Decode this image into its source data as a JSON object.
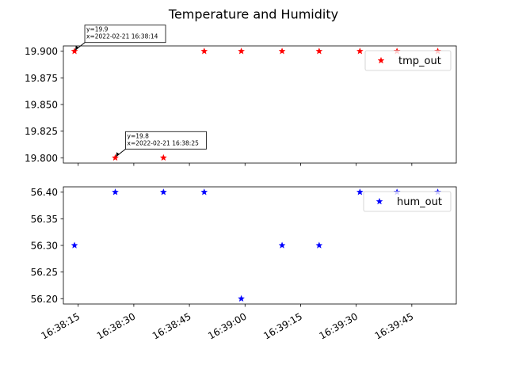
{
  "figure": {
    "title": "Temperature and Humidity"
  },
  "x_tick_labels": [
    "16:38:15",
    "16:38:30",
    "16:38:45",
    "16:39:00",
    "16:39:15",
    "16:39:30",
    "16:39:45"
  ],
  "chart_data": [
    {
      "type": "scatter",
      "title": "Temperature and Humidity",
      "xlabel": "",
      "ylabel": "",
      "marker": "star",
      "color": "#ff0000",
      "series": [
        {
          "name": "tmp_out",
          "x": [
            "16:38:14",
            "16:38:25",
            "16:38:38",
            "16:38:49",
            "16:38:59",
            "16:39:10",
            "16:39:20",
            "16:39:31",
            "16:39:41",
            "16:39:52"
          ],
          "values": [
            19.9,
            19.8,
            19.8,
            19.9,
            19.9,
            19.9,
            19.9,
            19.9,
            19.9,
            19.9
          ]
        }
      ],
      "xlim": [
        "16:38:11",
        "16:39:57"
      ],
      "ylim": [
        19.795,
        19.905
      ],
      "yticks": [
        "19.800",
        "19.825",
        "19.850",
        "19.875",
        "19.900"
      ],
      "grid": false,
      "legend_position": "top-right",
      "annotations": [
        {
          "lines": [
            "y=19.9",
            "x=2022-02-21 16:38:14"
          ],
          "x": "16:38:14",
          "y": 19.9
        },
        {
          "lines": [
            "y=19.8",
            "x=2022-02-21 16:38:25"
          ],
          "x": "16:38:25",
          "y": 19.8
        }
      ]
    },
    {
      "type": "scatter",
      "xlabel": "",
      "ylabel": "",
      "marker": "star",
      "color": "#0000ff",
      "series": [
        {
          "name": "hum_out",
          "x": [
            "16:38:14",
            "16:38:25",
            "16:38:38",
            "16:38:49",
            "16:38:59",
            "16:39:10",
            "16:39:20",
            "16:39:31",
            "16:39:41",
            "16:39:52"
          ],
          "values": [
            56.3,
            56.4,
            56.4,
            56.4,
            56.2,
            56.3,
            56.3,
            56.4,
            56.4,
            56.4
          ]
        }
      ],
      "xlim": [
        "16:38:11",
        "16:39:57"
      ],
      "ylim": [
        56.19,
        56.41
      ],
      "yticks": [
        "56.20",
        "56.25",
        "56.30",
        "56.35",
        "56.40"
      ],
      "grid": false,
      "legend_position": "top-right",
      "annotations": []
    }
  ]
}
